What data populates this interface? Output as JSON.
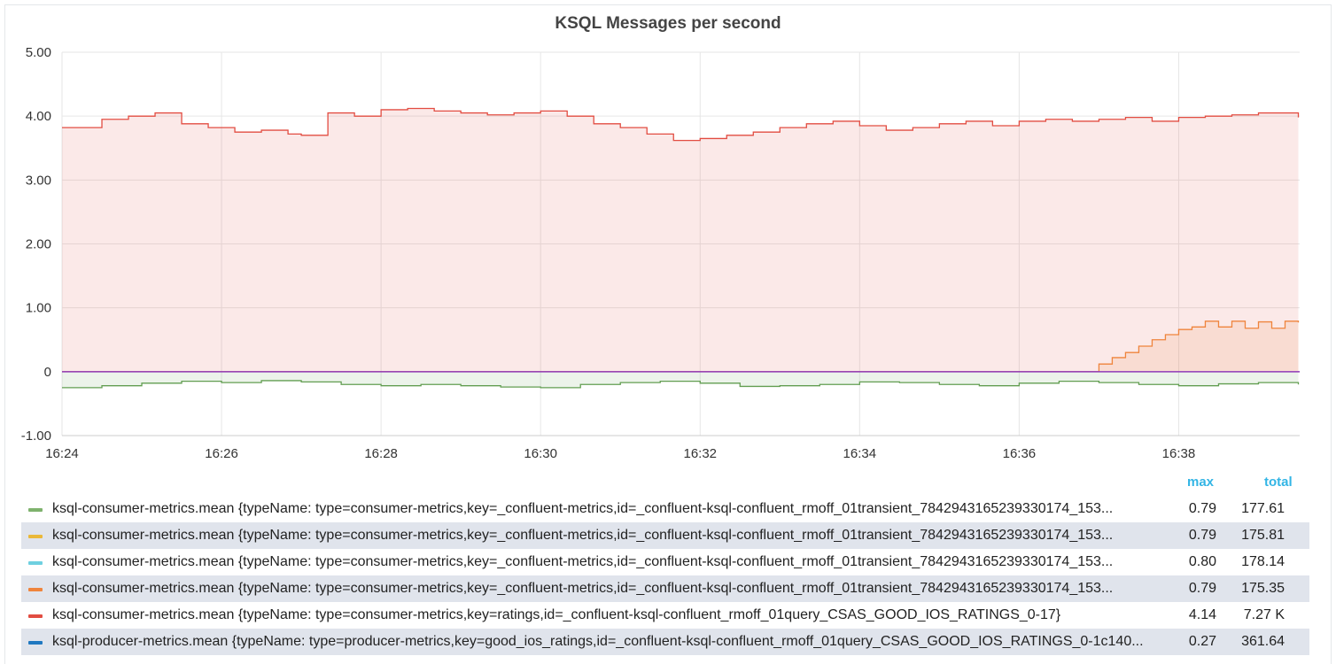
{
  "chart_data": {
    "type": "area",
    "title": "KSQL Messages per second",
    "xlabel": "",
    "ylabel": "",
    "ylim": [
      -1.0,
      5.0
    ],
    "xlim": [
      "16:24",
      "16:39:31"
    ],
    "yticks": [
      "5.00",
      "4.00",
      "3.00",
      "2.00",
      "1.00",
      "0",
      "-1.00"
    ],
    "xticks": [
      "16:24",
      "16:26",
      "16:28",
      "16:30",
      "16:32",
      "16:34",
      "16:36",
      "16:38"
    ],
    "grid": true,
    "legend_position": "bottom",
    "series": [
      {
        "name": "ksql-consumer-metrics.mean {typeName: type=consumer-metrics,key=ratings,id=_confluent-ksql-confluent_rmoff_01query_CSAS_GOOD_IOS_RATINGS_0-17}",
        "color": "#e24d42",
        "x": [
          "16:24",
          "16:24:30",
          "16:24:50",
          "16:25:10",
          "16:25:30",
          "16:25:50",
          "16:26:10",
          "16:26:30",
          "16:26:50",
          "16:27",
          "16:27:20",
          "16:27:40",
          "16:28",
          "16:28:20",
          "16:28:40",
          "16:29",
          "16:29:20",
          "16:29:40",
          "16:30",
          "16:30:20",
          "16:30:40",
          "16:31",
          "16:31:20",
          "16:31:40",
          "16:32",
          "16:32:20",
          "16:32:40",
          "16:33",
          "16:33:20",
          "16:33:40",
          "16:34",
          "16:34:20",
          "16:34:40",
          "16:35",
          "16:35:20",
          "16:35:40",
          "16:36",
          "16:36:20",
          "16:36:40",
          "16:37",
          "16:37:20",
          "16:37:40",
          "16:38",
          "16:38:20",
          "16:38:40",
          "16:39",
          "16:39:20",
          "16:39:30"
        ],
        "values": [
          3.82,
          3.95,
          4.0,
          4.05,
          3.88,
          3.82,
          3.75,
          3.78,
          3.72,
          3.7,
          4.05,
          4.0,
          4.1,
          4.12,
          4.08,
          4.05,
          4.02,
          4.05,
          4.08,
          4.0,
          3.88,
          3.82,
          3.72,
          3.62,
          3.65,
          3.7,
          3.75,
          3.82,
          3.88,
          3.92,
          3.85,
          3.78,
          3.82,
          3.88,
          3.92,
          3.85,
          3.92,
          3.95,
          3.92,
          3.95,
          3.98,
          3.92,
          3.98,
          4.0,
          4.02,
          4.05,
          4.05,
          3.98
        ]
      },
      {
        "name": "ksql-consumer-metrics.mean {typeName: type=consumer-metrics,key=_confluent-metrics,id=_confluent-ksql-confluent_rmoff_01transient_7842943165239330174_153...",
        "color": "#ef843c",
        "x": [
          "16:24",
          "16:36:40",
          "16:37",
          "16:37:10",
          "16:37:20",
          "16:37:30",
          "16:37:40",
          "16:37:50",
          "16:38",
          "16:38:10",
          "16:38:20",
          "16:38:30",
          "16:38:40",
          "16:38:50",
          "16:39",
          "16:39:10",
          "16:39:20",
          "16:39:30"
        ],
        "values": [
          0,
          0,
          0.12,
          0.22,
          0.3,
          0.4,
          0.5,
          0.58,
          0.66,
          0.7,
          0.79,
          0.7,
          0.79,
          0.68,
          0.78,
          0.68,
          0.79,
          0.77
        ]
      },
      {
        "name": "ksql-producer-metrics.mean {typeName: type=producer-metrics,key=good_ios_ratings,id=_confluent-ksql-confluent_rmoff_01query_CSAS_GOOD_IOS_RATINGS_0-1c140...",
        "color": "#629e51",
        "x": [
          "16:24",
          "16:24:30",
          "16:25",
          "16:25:30",
          "16:26",
          "16:26:30",
          "16:27",
          "16:27:30",
          "16:28",
          "16:28:30",
          "16:29",
          "16:29:30",
          "16:30",
          "16:30:30",
          "16:31",
          "16:31:30",
          "16:32",
          "16:32:30",
          "16:33",
          "16:33:30",
          "16:34",
          "16:34:30",
          "16:35",
          "16:35:30",
          "16:36",
          "16:36:30",
          "16:37",
          "16:37:30",
          "16:38",
          "16:38:30",
          "16:39",
          "16:39:30"
        ],
        "values": [
          -0.25,
          -0.22,
          -0.18,
          -0.15,
          -0.17,
          -0.14,
          -0.16,
          -0.2,
          -0.22,
          -0.2,
          -0.22,
          -0.24,
          -0.25,
          -0.2,
          -0.17,
          -0.15,
          -0.18,
          -0.23,
          -0.22,
          -0.2,
          -0.16,
          -0.17,
          -0.2,
          -0.22,
          -0.18,
          -0.15,
          -0.17,
          -0.2,
          -0.22,
          -0.19,
          -0.17,
          -0.2
        ]
      }
    ]
  },
  "legend": {
    "max_header": "max",
    "total_header": "total",
    "rows": [
      {
        "name": "ksql-consumer-metrics.mean {typeName: type=consumer-metrics,key=_confluent-metrics,id=_confluent-ksql-confluent_rmoff_01transient_7842943165239330174_153...",
        "color": "#7eb26d",
        "max": "0.79",
        "total": "177.61"
      },
      {
        "name": "ksql-consumer-metrics.mean {typeName: type=consumer-metrics,key=_confluent-metrics,id=_confluent-ksql-confluent_rmoff_01transient_7842943165239330174_153...",
        "color": "#eab839",
        "max": "0.79",
        "total": "175.81"
      },
      {
        "name": "ksql-consumer-metrics.mean {typeName: type=consumer-metrics,key=_confluent-metrics,id=_confluent-ksql-confluent_rmoff_01transient_7842943165239330174_153...",
        "color": "#6ed0e0",
        "max": "0.80",
        "total": "178.14"
      },
      {
        "name": "ksql-consumer-metrics.mean {typeName: type=consumer-metrics,key=_confluent-metrics,id=_confluent-ksql-confluent_rmoff_01transient_7842943165239330174_153...",
        "color": "#ef843c",
        "max": "0.79",
        "total": "175.35"
      },
      {
        "name": "ksql-consumer-metrics.mean {typeName: type=consumer-metrics,key=ratings,id=_confluent-ksql-confluent_rmoff_01query_CSAS_GOOD_IOS_RATINGS_0-17}",
        "color": "#e24d42",
        "max": "4.14",
        "total": "7.27 K"
      },
      {
        "name": "ksql-producer-metrics.mean {typeName: type=producer-metrics,key=good_ios_ratings,id=_confluent-ksql-confluent_rmoff_01query_CSAS_GOOD_IOS_RATINGS_0-1c140...",
        "color": "#1f78c1",
        "max": "0.27",
        "total": "361.64"
      }
    ]
  }
}
